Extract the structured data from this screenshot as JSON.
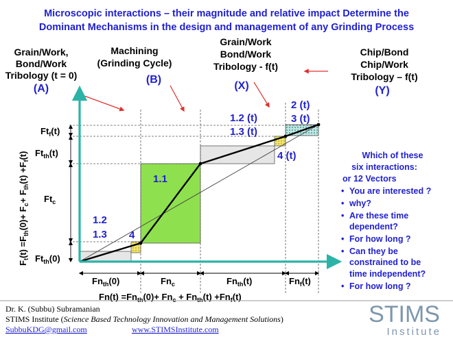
{
  "title": {
    "line1": "Microscopic interactions – their magnitude and relative impact Determine the",
    "line2": "Dominant Mechanisms in the design and management of any Grinding Process"
  },
  "stages": [
    {
      "line1": "Grain/Work,",
      "line2": "Bond/Work",
      "line3": "Tribology (t = 0)",
      "id": "(A)"
    },
    {
      "line1": "Machining",
      "line2": "(Grinding Cycle)",
      "id": "(B)"
    },
    {
      "line1": "Grain/Work",
      "line2": "Bond/Work",
      "line3": "Tribology - f(t)",
      "id": "(X)"
    },
    {
      "line1": "Chip/Bond",
      "line2": "Chip/Work",
      "line3": "Tribology – f(t)",
      "id": "(Y)"
    }
  ],
  "labels": {
    "seg_1_2_3_top": "1.2",
    "seg_1_2_3_bottom": "1.3",
    "four_left": "4",
    "one_one": "1.1",
    "seg_1_2t": "1.2 (t)",
    "seg_1_3t": "1.3 (t)",
    "four_t": "4 (t)",
    "two_t": "2 (t)",
    "three_t": "3 (t)"
  },
  "y_axis": {
    "title": {
      "a": "F",
      "a_sub": "t",
      "b": "(t) =F",
      "b_sub": "th",
      "c": "(0)+ F",
      "c_sub": "c",
      "d": "+ F",
      "d_sub": "th",
      "e": "(t) +F",
      "e_sub": "f",
      "f": "(t)"
    },
    "ticks": [
      {
        "main": "Ft",
        "sub": "f",
        "tail": "(t)"
      },
      {
        "main": "Ft",
        "sub": "th",
        "tail": "(t)"
      },
      {
        "main": "Ft",
        "sub": "c",
        "tail": ""
      },
      {
        "main": "Ft",
        "sub": "th",
        "tail": "(0)"
      }
    ]
  },
  "x_axis": {
    "title": {
      "a": "Fn(t) =Fn",
      "a_sub": "th",
      "b": "(0)+ Fn",
      "b_sub": "c",
      "c": " + Fn",
      "c_sub": "th",
      "d": "(t) +Fn",
      "d_sub": "f",
      "e": "(t)"
    },
    "ticks": [
      {
        "main": "Fn",
        "sub": "th",
        "tail": "(0)"
      },
      {
        "main": "Fn",
        "sub": "c",
        "tail": ""
      },
      {
        "main": "Fn",
        "sub": "th",
        "tail": "(t)"
      },
      {
        "main": "Fn",
        "sub": "f",
        "tail": "(t)"
      }
    ]
  },
  "questions": {
    "heading1": "Which of these",
    "heading2": "six interactions:",
    "heading3": "or 12 Vectors",
    "items": [
      "You are interested ?",
      "why?",
      "Are these time",
      "dependent?",
      "For how long ?",
      "Can they be",
      "constrained to be",
      "time independent?",
      "For how long ?"
    ],
    "bullet": "•"
  },
  "footer": {
    "author": "Dr. K. (Subbu) Subramanian",
    "institute_prefix": "STIMS Institute (",
    "institute_italic": "Science Based Technology Innovation and Management Solutions",
    "institute_suffix": ")",
    "email": "SubbuKDG@gmail.com",
    "website": "www.STIMSInstitute.com"
  },
  "logo": {
    "main": "STIMS",
    "sub": "Institute"
  },
  "colors": {
    "teal": "#2bb3a8",
    "green": "#8fe04e",
    "yellow": "#f2e56a",
    "gray": "#e6e6e6",
    "blue_text": "#1f1fd0",
    "red_arrow": "#e0302e",
    "dotted_fill": "#9fd8d4"
  }
}
